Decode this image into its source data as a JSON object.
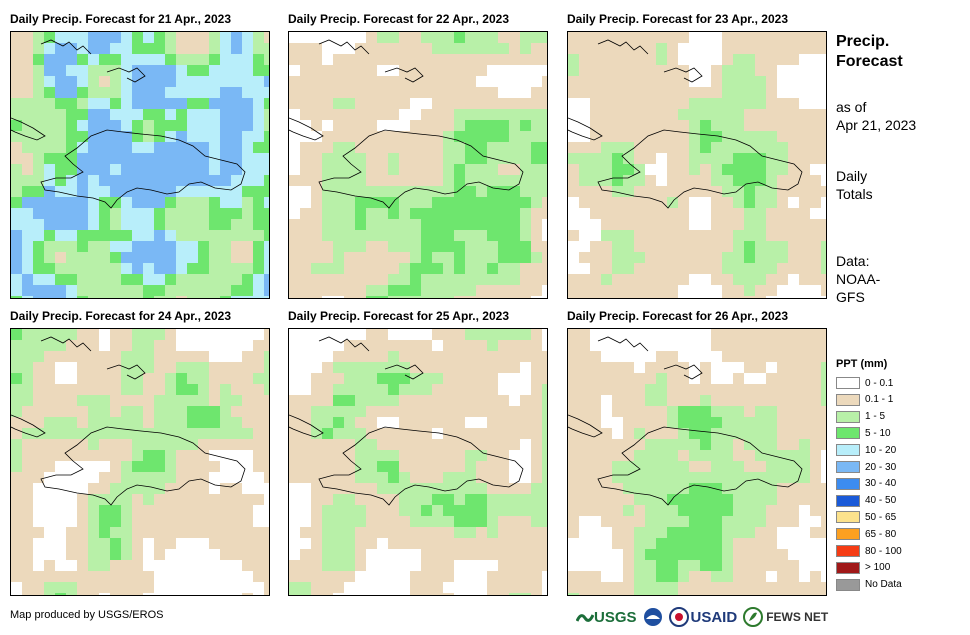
{
  "panels": [
    {
      "title": "Daily Precip. Forecast for 21 Apr., 2023",
      "day": 0
    },
    {
      "title": "Daily Precip. Forecast for 22 Apr., 2023",
      "day": 1
    },
    {
      "title": "Daily Precip. Forecast for 23 Apr., 2023",
      "day": 2
    },
    {
      "title": "Daily Precip. Forecast for 24 Apr., 2023",
      "day": 3
    },
    {
      "title": "Daily Precip. Forecast for 25 Apr., 2023",
      "day": 4
    },
    {
      "title": "Daily Precip. Forecast for 26 Apr., 2023",
      "day": 5
    }
  ],
  "side": {
    "title_line1": "Precip.",
    "title_line2": "Forecast",
    "asof_line1": "as of",
    "asof_line2": "Apr 21, 2023",
    "totals_line1": "Daily",
    "totals_line2": "Totals",
    "data_line1": "Data:",
    "data_line2": "NOAA-",
    "data_line3": "GFS"
  },
  "legend": {
    "title": "PPT (mm)",
    "items": [
      {
        "label": "0 - 0.1",
        "color": "#ffffff"
      },
      {
        "label": "0.1 - 1",
        "color": "#ecd9bc"
      },
      {
        "label": "1 - 5",
        "color": "#b8f0a8"
      },
      {
        "label": "5 - 10",
        "color": "#6ee66e"
      },
      {
        "label": "10 - 20",
        "color": "#b8eefa"
      },
      {
        "label": "20 - 30",
        "color": "#7ab8f5"
      },
      {
        "label": "30 - 40",
        "color": "#3c8cf0"
      },
      {
        "label": "40 - 50",
        "color": "#1a5ad8"
      },
      {
        "label": "50 - 65",
        "color": "#fce28c"
      },
      {
        "label": "65 - 80",
        "color": "#fca020"
      },
      {
        "label": "80 - 100",
        "color": "#f53c14"
      },
      {
        "label": "> 100",
        "color": "#a01818"
      },
      {
        "label": "No Data",
        "color": "#999999"
      }
    ]
  },
  "footer": {
    "credit": "Map produced by USGS/EROS",
    "logo_usgs": "USGS",
    "logo_usaid": "USAID",
    "logo_fewsnet": "FEWS NET"
  }
}
